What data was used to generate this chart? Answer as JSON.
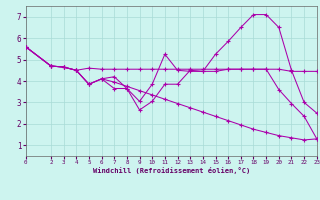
{
  "background_color": "#cdf4ef",
  "grid_color": "#a8dbd6",
  "line_color": "#aa00aa",
  "xlim": [
    0,
    23
  ],
  "ylim": [
    0.5,
    7.5
  ],
  "xticks": [
    0,
    2,
    3,
    4,
    5,
    6,
    7,
    8,
    9,
    10,
    11,
    12,
    13,
    14,
    15,
    16,
    17,
    18,
    19,
    20,
    21,
    22,
    23
  ],
  "yticks": [
    1,
    2,
    3,
    4,
    5,
    6,
    7
  ],
  "xlabel": "Windchill (Refroidissement éolien,°C)",
  "line1_x": [
    0,
    2,
    3,
    4,
    5,
    6,
    7,
    8,
    9,
    10,
    11,
    12,
    13,
    14,
    15,
    16,
    17,
    18,
    19,
    20,
    21,
    22,
    23
  ],
  "line1_y": [
    5.6,
    4.7,
    4.65,
    4.5,
    4.6,
    4.55,
    4.55,
    4.55,
    4.55,
    4.55,
    4.55,
    4.55,
    4.55,
    4.55,
    4.55,
    4.55,
    4.55,
    4.55,
    4.55,
    4.55,
    4.45,
    4.45,
    4.45
  ],
  "line2_x": [
    0,
    2,
    3,
    4,
    5,
    6,
    7,
    8,
    9,
    10,
    11,
    12,
    13,
    14,
    15,
    16,
    17,
    18,
    19,
    20,
    21,
    22,
    23
  ],
  "line2_y": [
    5.6,
    4.7,
    4.65,
    4.5,
    3.85,
    4.1,
    4.2,
    3.65,
    2.65,
    3.05,
    3.85,
    3.85,
    4.5,
    4.45,
    5.25,
    5.85,
    6.5,
    7.1,
    7.1,
    6.5,
    4.5,
    3.0,
    2.5
  ],
  "line3_x": [
    0,
    2,
    3,
    4,
    5,
    6,
    7,
    8,
    9,
    10,
    11,
    12,
    13,
    14,
    15,
    16,
    17,
    18,
    19,
    20,
    21,
    22,
    23
  ],
  "line3_y": [
    5.6,
    4.7,
    4.65,
    4.5,
    3.85,
    4.1,
    3.65,
    3.65,
    3.05,
    3.85,
    5.25,
    4.5,
    4.45,
    4.45,
    4.45,
    4.55,
    4.55,
    4.55,
    4.55,
    3.6,
    2.95,
    2.35,
    1.3
  ],
  "line4_x": [
    0,
    2,
    3,
    4,
    5,
    6,
    7,
    8,
    9,
    10,
    11,
    12,
    13,
    14,
    15,
    16,
    17,
    18,
    19,
    20,
    21,
    22,
    23
  ],
  "line4_y": [
    5.6,
    4.7,
    4.65,
    4.5,
    3.85,
    4.1,
    3.95,
    3.75,
    3.55,
    3.35,
    3.15,
    2.95,
    2.75,
    2.55,
    2.35,
    2.15,
    1.95,
    1.75,
    1.6,
    1.45,
    1.35,
    1.25,
    1.3
  ]
}
